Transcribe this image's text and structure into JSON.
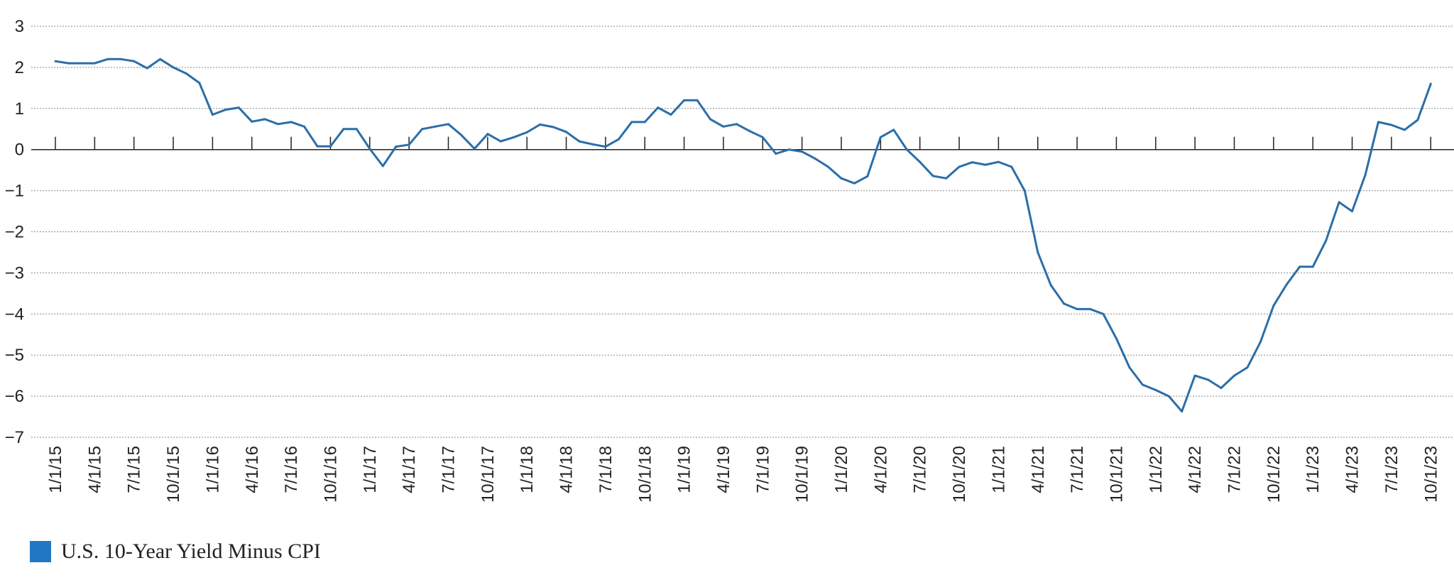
{
  "chart_data": {
    "type": "line",
    "y_ticks": [
      "3",
      "2",
      "1",
      "0",
      "−1",
      "−2",
      "−3",
      "−4",
      "−5",
      "−6",
      "−7"
    ],
    "y_tick_values": [
      3,
      2,
      1,
      0,
      -1,
      -2,
      -3,
      -4,
      -5,
      -6,
      -7
    ],
    "ylim": [
      -7,
      3
    ],
    "x_ticks": [
      "1/1/15",
      "4/1/15",
      "7/1/15",
      "10/1/15",
      "1/1/16",
      "4/1/16",
      "7/1/16",
      "10/1/16",
      "1/1/17",
      "4/1/17",
      "7/1/17",
      "10/1/17",
      "1/1/18",
      "4/1/18",
      "7/1/18",
      "10/1/18",
      "1/1/19",
      "4/1/19",
      "7/1/19",
      "10/1/19",
      "1/1/20",
      "4/1/20",
      "7/1/20",
      "10/1/20",
      "1/1/21",
      "4/1/21",
      "7/1/21",
      "10/1/21",
      "1/1/22",
      "4/1/22",
      "7/1/22",
      "10/1/22",
      "1/1/23",
      "4/1/23",
      "7/1/23",
      "10/1/23"
    ],
    "grid": "horizontal dotted",
    "legend_position": "bottom-left",
    "series": [
      {
        "name": "U.S. 10-Year Yield Minus CPI",
        "color": "#2b6ea8",
        "values": [
          2.15,
          2.1,
          2.1,
          2.1,
          2.2,
          2.2,
          2.15,
          1.98,
          2.2,
          2.0,
          1.85,
          1.62,
          0.85,
          0.97,
          1.02,
          0.68,
          0.74,
          0.62,
          0.67,
          0.56,
          0.08,
          0.08,
          0.5,
          0.5,
          0.02,
          -0.4,
          0.07,
          0.12,
          0.5,
          0.56,
          0.62,
          0.35,
          0.02,
          0.38,
          0.2,
          0.3,
          0.42,
          0.61,
          0.55,
          0.43,
          0.2,
          0.13,
          0.07,
          0.25,
          0.67,
          0.67,
          1.02,
          0.85,
          1.2,
          1.2,
          0.74,
          0.56,
          0.62,
          0.45,
          0.3,
          -0.1,
          0.0,
          -0.05,
          -0.22,
          -0.42,
          -0.7,
          -0.82,
          -0.65,
          0.3,
          0.48,
          0.0,
          -0.3,
          -0.64,
          -0.7,
          -0.42,
          -0.31,
          -0.37,
          -0.3,
          -0.42,
          -1.0,
          -2.5,
          -3.3,
          -3.75,
          -3.88,
          -3.88,
          -4.0,
          -4.6,
          -5.3,
          -5.72,
          -5.85,
          -6.0,
          -6.37,
          -5.5,
          -5.6,
          -5.8,
          -5.5,
          -5.3,
          -4.68,
          -3.8,
          -3.28,
          -2.85,
          -2.85,
          -2.22,
          -1.28,
          -1.5,
          -0.62,
          0.67,
          0.6,
          0.48,
          0.72,
          1.6
        ]
      }
    ]
  }
}
